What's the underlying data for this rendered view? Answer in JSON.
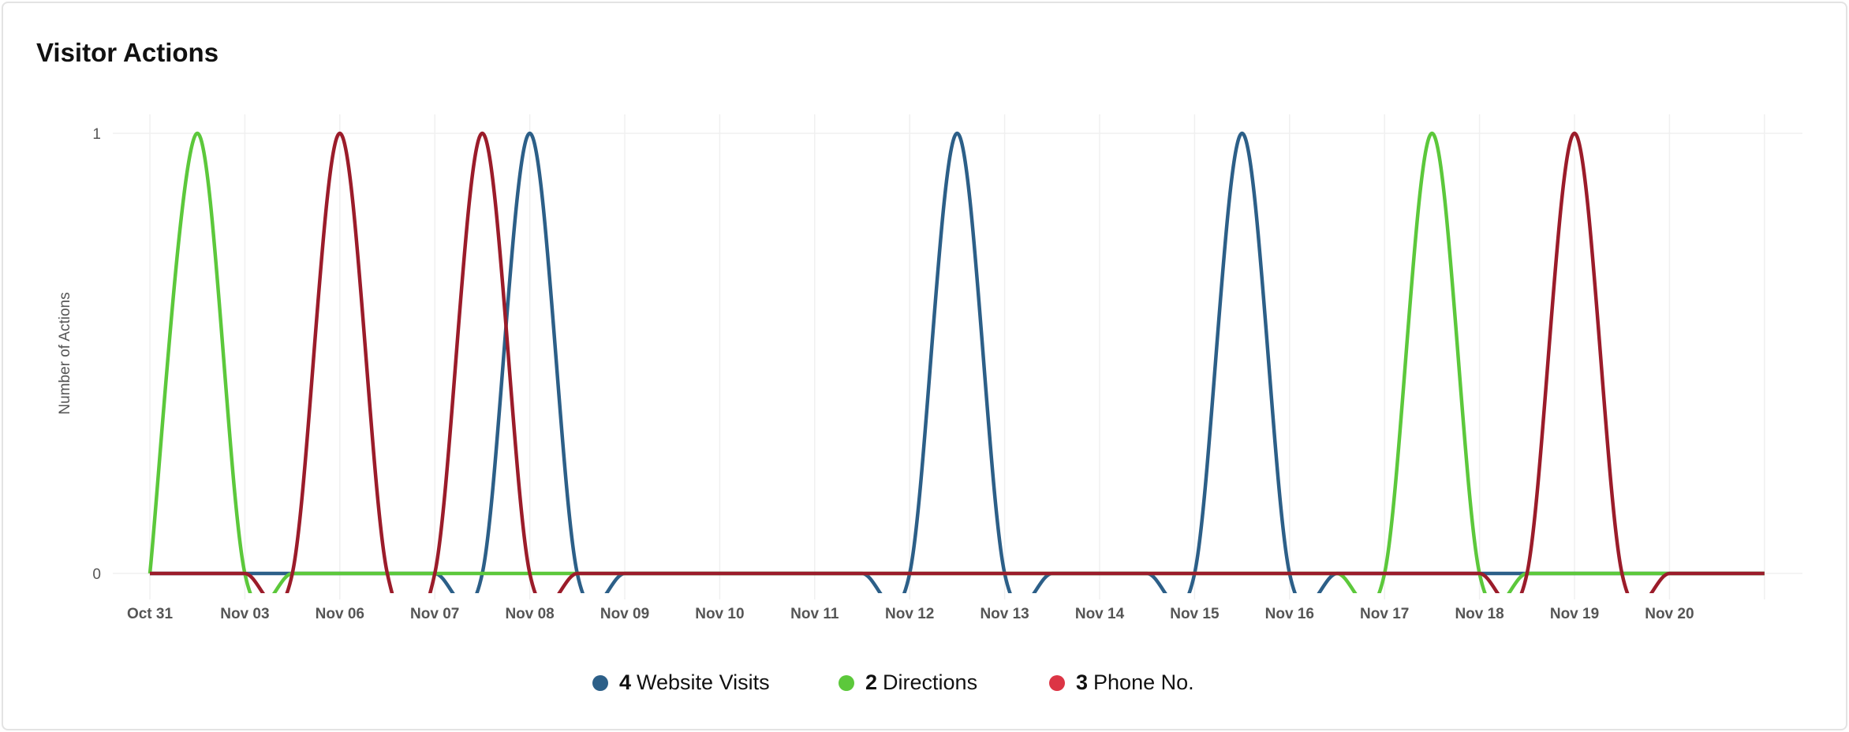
{
  "title": "Visitor Actions",
  "chart_data": {
    "type": "line",
    "title": "Visitor Actions",
    "ylabel": "Number of Actions",
    "xlabel": "",
    "x_ticks": [
      "Oct 31",
      "Nov 03",
      "Nov 06",
      "Nov 07",
      "Nov 08",
      "Nov 09",
      "Nov 10",
      "Nov 11",
      "Nov 12",
      "Nov 13",
      "Nov 14",
      "Nov 15",
      "Nov 16",
      "Nov 17",
      "Nov 18",
      "Nov 19",
      "Nov 20"
    ],
    "y_ticks": [
      "0",
      "1"
    ],
    "ylim": [
      0,
      1
    ],
    "grid": true,
    "legend_position": "bottom",
    "baseline_value": 0,
    "series": [
      {
        "name": "Website Visits",
        "count": "4",
        "color": "#2c5f88",
        "legend_color": "#2c5f88",
        "peaks": [
          {
            "x": "Nov 08",
            "y": 1
          },
          {
            "x": [
              "Nov 12",
              "Nov 13"
            ],
            "y": 1
          },
          {
            "x": [
              "Nov 15",
              "Nov 16"
            ],
            "y": 1
          }
        ]
      },
      {
        "name": "Directions",
        "count": "2",
        "color": "#5cc83b",
        "legend_color": "#5cc83b",
        "peaks": [
          {
            "x": [
              "Oct 31",
              "Nov 03"
            ],
            "y": 1
          },
          {
            "x": [
              "Nov 17",
              "Nov 18"
            ],
            "y": 1
          }
        ]
      },
      {
        "name": "Phone No.",
        "count": "3",
        "color": "#9b1c2a",
        "legend_color": "#dc3545",
        "peaks": [
          {
            "x": "Nov 06",
            "y": 1
          },
          {
            "x": [
              "Nov 07",
              "Nov 08"
            ],
            "y": 1
          },
          {
            "x": "Nov 19",
            "y": 1
          }
        ]
      }
    ]
  }
}
